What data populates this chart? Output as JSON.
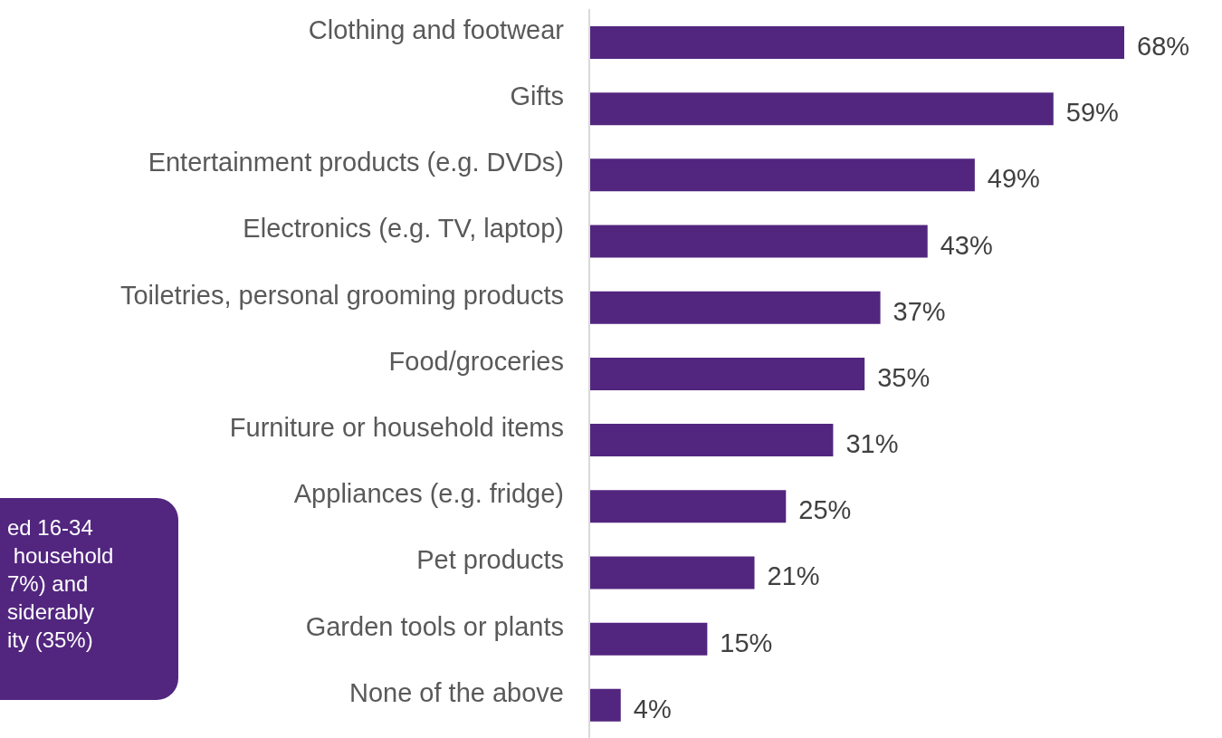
{
  "chart_data": {
    "type": "bar",
    "orientation": "horizontal",
    "categories": [
      "Clothing and footwear",
      "Gifts",
      "Entertainment products (e.g. DVDs)",
      "Electronics (e.g. TV, laptop)",
      "Toiletries, personal grooming products",
      "Food/groceries",
      "Furniture or household items",
      "Appliances (e.g. fridge)",
      "Pet products",
      "Garden tools or plants",
      "None of the above"
    ],
    "values": [
      68,
      59,
      49,
      43,
      37,
      35,
      31,
      25,
      21,
      15,
      4
    ],
    "value_labels": [
      "68%",
      "59%",
      "49%",
      "43%",
      "37%",
      "35%",
      "31%",
      "25%",
      "21%",
      "15%",
      "4%"
    ],
    "color": "#52267f",
    "annotations": [
      "ed 16-34\n household\n7%) and\nsiderably\nity (35%)"
    ]
  }
}
